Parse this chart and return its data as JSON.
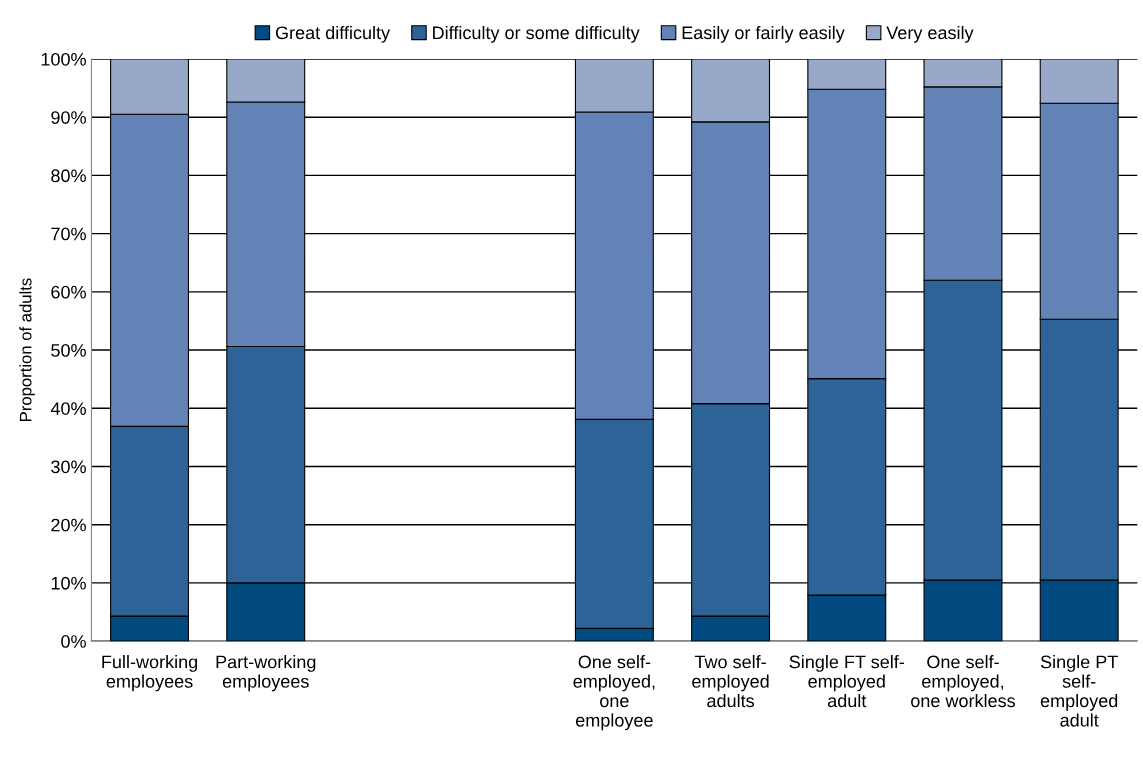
{
  "chart_data": {
    "type": "bar",
    "stacked": true,
    "ylabel": "Proportion of adults",
    "categories": [
      "Full-working\nemployees",
      "Part-working\nemployees",
      null,
      null,
      "One self-\nemployed,\none\nemployee",
      "Two self-\nemployed\nadults",
      "Single FT self-\nemployed\nadult",
      "One self-\nemployed,\none workless",
      "Single PT\nself-\nemployed\nadult"
    ],
    "series": [
      {
        "name": "Great difficulty",
        "color": "#004a80",
        "values": [
          4.3,
          10.0,
          null,
          null,
          2.2,
          4.3,
          7.9,
          10.5,
          10.5
        ]
      },
      {
        "name": "Difficulty or some difficulty",
        "color": "#2e6398",
        "values": [
          32.6,
          40.6,
          null,
          null,
          35.9,
          36.5,
          37.2,
          51.5,
          44.8
        ]
      },
      {
        "name": "Easily or fairly easily",
        "color": "#6382b5",
        "values": [
          53.6,
          42.0,
          null,
          null,
          52.8,
          48.4,
          49.7,
          33.2,
          37.1
        ]
      },
      {
        "name": "Very easily",
        "color": "#97a8c9",
        "values": [
          9.5,
          7.4,
          null,
          null,
          9.1,
          10.8,
          5.2,
          4.8,
          7.6
        ]
      }
    ],
    "ylim": [
      0,
      100
    ],
    "yticks": [
      {
        "value": 0,
        "label": "0%"
      },
      {
        "value": 10,
        "label": "10%"
      },
      {
        "value": 20,
        "label": "20%"
      },
      {
        "value": 30,
        "label": "30%"
      },
      {
        "value": 40,
        "label": "40%"
      },
      {
        "value": 50,
        "label": "50%"
      },
      {
        "value": 60,
        "label": "60%"
      },
      {
        "value": 70,
        "label": "70%"
      },
      {
        "value": 80,
        "label": "80%"
      },
      {
        "value": 90,
        "label": "90%"
      },
      {
        "value": 100,
        "label": "100%"
      }
    ],
    "grid": "y",
    "legend": "top"
  }
}
